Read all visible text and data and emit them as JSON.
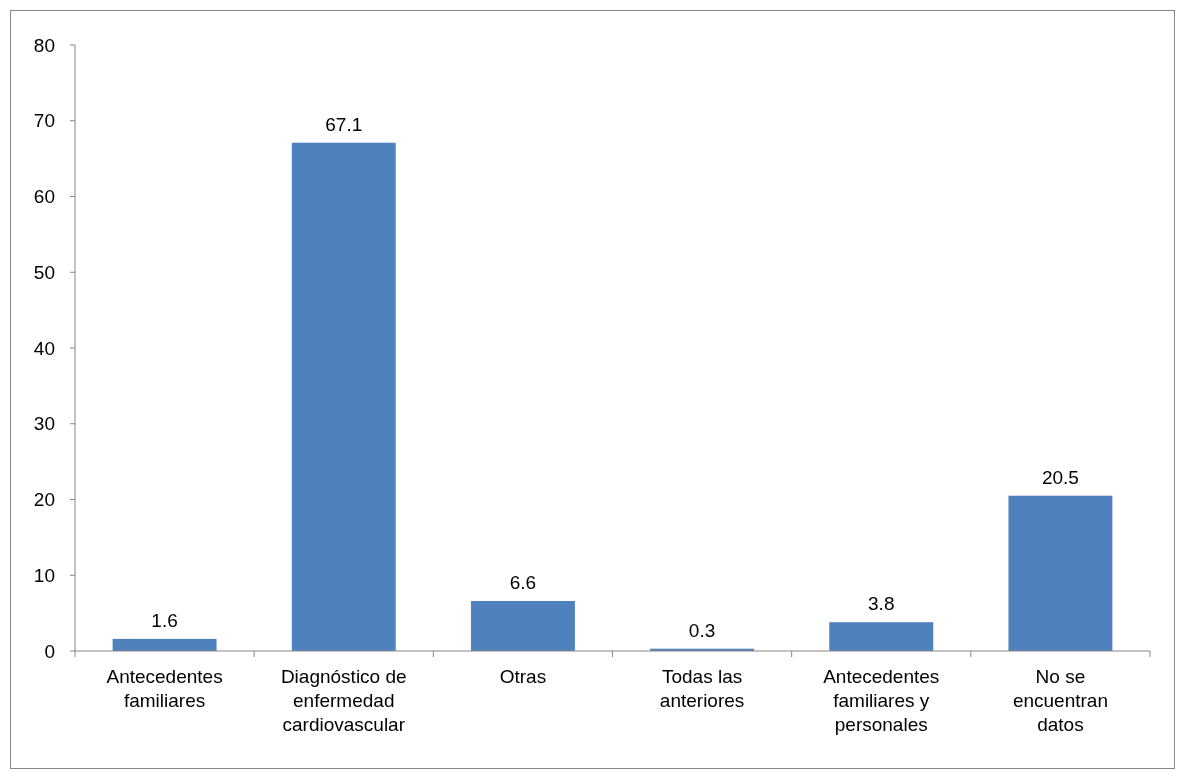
{
  "chart_data": {
    "type": "bar",
    "categories": [
      "Antecedentes familiares",
      "Diagnóstico de enfermedad cardiovascular",
      "Otras",
      "Todas las anteriores",
      "Antecedentes familiares y personales",
      "No se encuentran datos"
    ],
    "values": [
      1.6,
      67.1,
      6.6,
      0.3,
      3.8,
      20.5
    ],
    "color": "#4f81bd",
    "ylim": [
      0,
      80
    ],
    "yticks": [
      0,
      10,
      20,
      30,
      40,
      50,
      60,
      70,
      80
    ],
    "data_labels": true
  }
}
